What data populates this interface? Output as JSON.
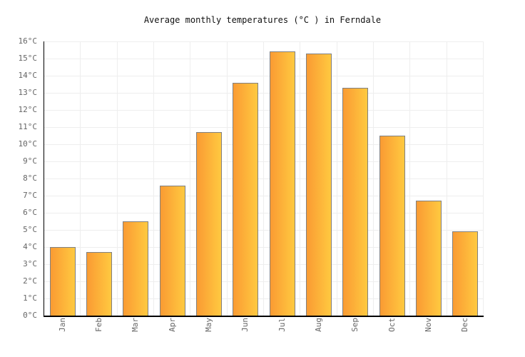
{
  "title": "Average monthly temperatures (°C ) in Ferndale",
  "chart_data": {
    "type": "bar",
    "title": "Average monthly temperatures (°C ) in Ferndale",
    "categories": [
      "Jan",
      "Feb",
      "Mar",
      "Apr",
      "May",
      "Jun",
      "Jul",
      "Aug",
      "Sep",
      "Oct",
      "Nov",
      "Dec"
    ],
    "values": [
      4.0,
      3.7,
      5.5,
      7.6,
      10.7,
      13.6,
      15.4,
      15.3,
      13.3,
      10.5,
      6.7,
      4.9
    ],
    "xlabel": "",
    "ylabel": "",
    "ylim": [
      0,
      16
    ],
    "ytick_step": 1,
    "ytick_suffix": "°C",
    "grid": true,
    "legend_position": "none",
    "colors": {
      "bar_gradient_left": "#fa9b33",
      "bar_gradient_right": "#ffc940",
      "bar_border": "#808080",
      "gridline": "#eeeeee",
      "axis": "#000000",
      "tick_label": "#666666",
      "title_text": "#111111",
      "background": "#ffffff"
    }
  }
}
